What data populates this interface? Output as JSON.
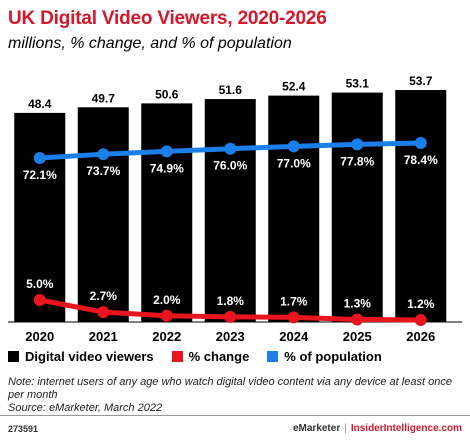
{
  "header": {
    "title": "UK Digital Video Viewers, 2020-2026",
    "subtitle": "millions, % change, and % of population"
  },
  "legend": {
    "viewers_label": "Digital video viewers",
    "change_label": "% change",
    "population_label": "% of population"
  },
  "note": {
    "text": "Note: internet users of any age who watch digital video content via any device at least once per month",
    "source": "Source: eMarketer, March 2022"
  },
  "footer": {
    "chart_id": "273591",
    "brand": "eMarketer",
    "separator": "|",
    "site": "InsiderIntelligence.com"
  },
  "colors": {
    "title": "#d6172a",
    "bars": "#000000",
    "change_line": "#e8151f",
    "population_line": "#1a7fe8"
  },
  "chart_data": {
    "type": "bar",
    "categories": [
      "2020",
      "2021",
      "2022",
      "2023",
      "2024",
      "2025",
      "2026"
    ],
    "series": [
      {
        "name": "Digital video viewers",
        "type": "bar",
        "values": [
          48.4,
          49.7,
          50.6,
          51.6,
          52.4,
          53.1,
          53.7
        ],
        "labels": [
          "48.4",
          "49.7",
          "50.6",
          "51.6",
          "52.4",
          "53.1",
          "53.7"
        ]
      },
      {
        "name": "% of population",
        "type": "line",
        "values": [
          72.1,
          73.7,
          74.9,
          76.0,
          77.0,
          77.8,
          78.4
        ],
        "labels": [
          "72.1%",
          "73.7%",
          "74.9%",
          "76.0%",
          "77.0%",
          "77.8%",
          "78.4%"
        ]
      },
      {
        "name": "% change",
        "type": "line",
        "values": [
          5.0,
          2.7,
          2.0,
          1.8,
          1.7,
          1.3,
          1.2
        ],
        "labels": [
          "5.0%",
          "2.7%",
          "2.0%",
          "1.8%",
          "1.7%",
          "1.3%",
          "1.2%"
        ]
      }
    ]
  }
}
